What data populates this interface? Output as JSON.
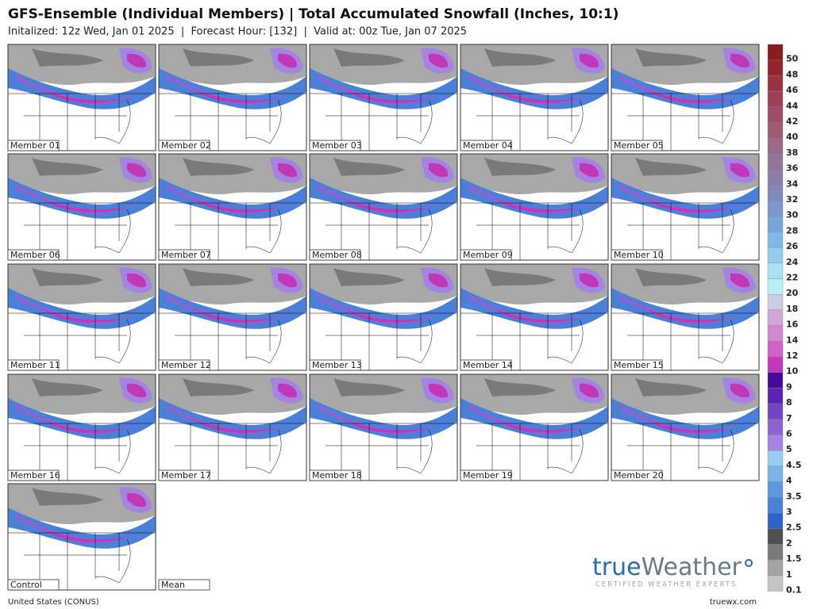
{
  "header": {
    "title": "GFS-Ensemble (Individual Members) | Total Accumulated Snowfall (Inches, 10:1)",
    "subtitle": "Initalized: 12z Wed, Jan 01 2025  |  Forecast Hour: [132]  |  Valid at: 00z Tue, Jan 07 2025"
  },
  "panels": [
    "Member 01",
    "Member 02",
    "Member 03",
    "Member 04",
    "Member 05",
    "Member 06",
    "Member 07",
    "Member 08",
    "Member 09",
    "Member 10",
    "Member 11",
    "Member 12",
    "Member 13",
    "Member 14",
    "Member 15",
    "Member 16",
    "Member 17",
    "Member 18",
    "Member 19",
    "Member 20",
    "Control",
    "Mean"
  ],
  "colorbar": {
    "levels": [
      50,
      48,
      46,
      44,
      42,
      40,
      38,
      36,
      34,
      32,
      30,
      28,
      26,
      24,
      22,
      20,
      18,
      16,
      14,
      12,
      10,
      9,
      8,
      7,
      6,
      5,
      4.5,
      4,
      3.5,
      3,
      2.5,
      2,
      1.5,
      1,
      0.1
    ],
    "colors": [
      "#8b1a1a",
      "#93252e",
      "#9a3242",
      "#9e3f55",
      "#a04c66",
      "#a05a78",
      "#9c6888",
      "#927496",
      "#8a7ea8",
      "#8088bc",
      "#7d96cc",
      "#74a6dc",
      "#80b8e6",
      "#94ccee",
      "#a8e2f4",
      "#b8eef8",
      "#cccce4",
      "#d0a8d8",
      "#d088d0",
      "#d060c8",
      "#c038b8",
      "#440a98",
      "#5a24ae",
      "#7244c2",
      "#8c64d2",
      "#a484e0",
      "#98caf4",
      "#7cb2ec",
      "#5e96e0",
      "#4a80d8",
      "#2c64c8",
      "#505050",
      "#7a7a7a",
      "#a4a4a4",
      "#c4c4c4"
    ]
  },
  "logo": {
    "brand_a": "true",
    "brand_b": "Weather",
    "tagline": "CERTIFIED WEATHER EXPERTS"
  },
  "footer": {
    "region": "United States (CONUS)",
    "site": "truewx.com"
  }
}
